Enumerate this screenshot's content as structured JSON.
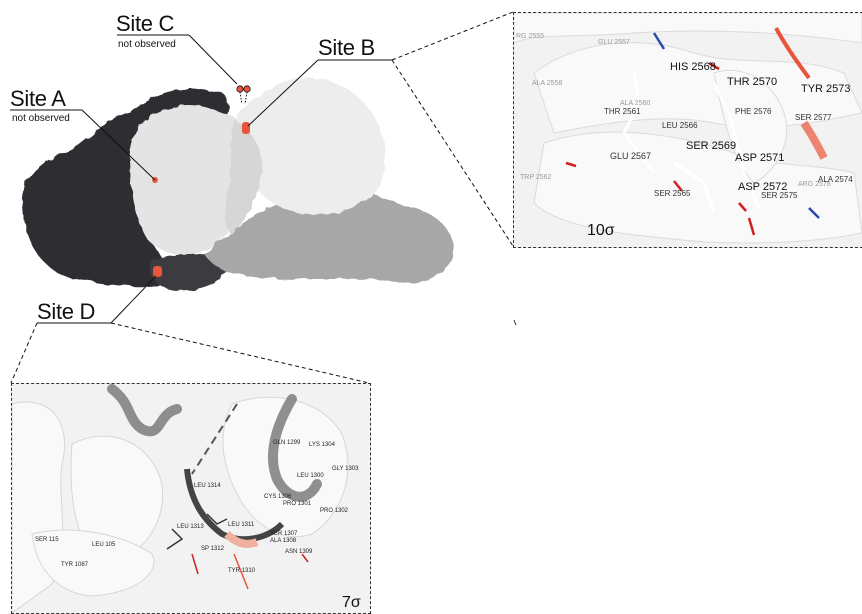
{
  "sites": {
    "a": {
      "label": "Site A",
      "sub": "not observed"
    },
    "b": {
      "label": "Site B"
    },
    "c": {
      "label": "Site C",
      "sub": "not observed"
    },
    "d": {
      "label": "Site D"
    }
  },
  "panel_b": {
    "sigma": "10σ",
    "residues": [
      "RG 2555",
      "GLU 2557",
      "HIS 2568",
      "ALA 2558",
      "ALA 2560",
      "THR 2561",
      "THR 2570",
      "TYR 2573",
      "PHE 2576",
      "LEU 2566",
      "SER 2577",
      "GLU 2567",
      "SER 2569",
      "ASP 2571",
      "TRP 2562",
      "SER 2565",
      "ASP 2572",
      "SER 2575",
      "ARG 2578",
      "ALA 2574"
    ]
  },
  "panel_d": {
    "sigma": "7σ",
    "residues": [
      "GLN 1299",
      "LYS 1304",
      "LEU 1300",
      "GLY 1303",
      "LEU 1314",
      "CYS 1306",
      "PRO 1301",
      "PRO 1302",
      "LEU 1313",
      "LEU 1311",
      "SER 1307",
      "ALA 1308",
      "SER 115",
      "LEU 105",
      "SP 1312",
      "ASN 1309",
      "TYR 1087",
      "TYR 1310"
    ]
  },
  "colors": {
    "highlight": "#e8553a",
    "dark": "#2f2f33",
    "light": "#ededed",
    "mid": "#a7a7a7"
  }
}
